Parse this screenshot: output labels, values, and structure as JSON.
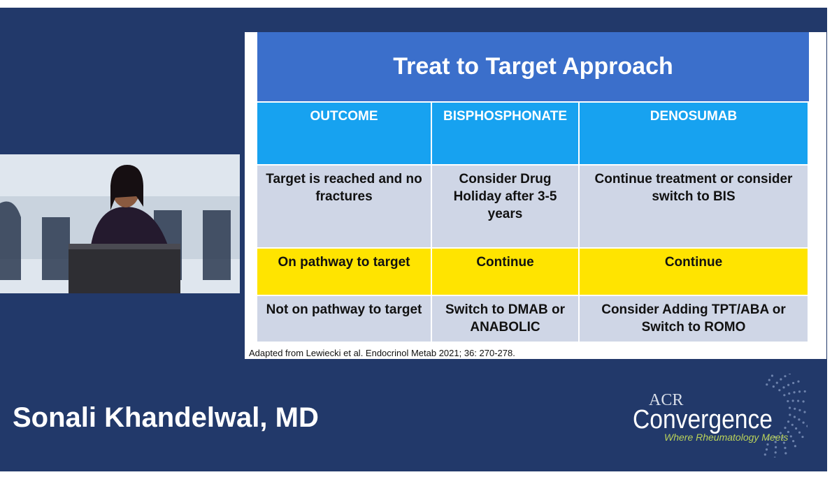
{
  "slide": {
    "title": "Treat to Target Approach",
    "table": {
      "header": [
        "OUTCOME",
        "BISPHOSPHONATE",
        "DENOSUMAB"
      ],
      "rows": [
        [
          "Target is reached and no fractures",
          "Consider Drug Holiday after 3-5 years",
          "Continue treatment or consider switch to BIS"
        ],
        [
          "On pathway to target",
          "Continue",
          "Continue"
        ],
        [
          "Not on pathway to target",
          "Switch to DMAB or ANABOLIC",
          "Consider Adding TPT/ABA or Switch to ROMO"
        ]
      ]
    },
    "citation": "Adapted from Lewiecki et al. Endocrinol Metab 2021; 36: 270-278."
  },
  "speaker": {
    "name": "Sonali Khandelwal, MD"
  },
  "logo": {
    "acr": "ACR",
    "name": "Convergence",
    "tagline": "Where Rheumatology Meets"
  }
}
